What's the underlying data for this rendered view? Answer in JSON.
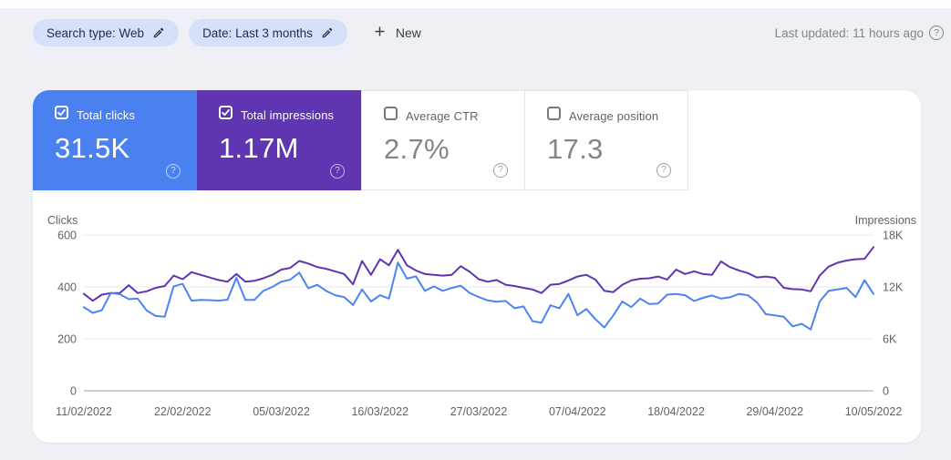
{
  "topbar": {
    "chips": [
      {
        "label": "Search type: Web"
      },
      {
        "label": "Date: Last 3 months"
      }
    ],
    "new_button": "New",
    "last_updated": "Last updated: 11 hours ago"
  },
  "icons": {
    "help": "?"
  },
  "metrics": [
    {
      "label": "Total clicks",
      "value": "31.5K",
      "checked": true,
      "color": "#4a80f0"
    },
    {
      "label": "Total impressions",
      "value": "1.17M",
      "checked": true,
      "color": "#5f35b1"
    },
    {
      "label": "Average CTR",
      "value": "2.7%",
      "checked": false,
      "color": "#ffffff"
    },
    {
      "label": "Average position",
      "value": "17.3",
      "checked": false,
      "color": "#ffffff"
    }
  ],
  "chart_data": {
    "type": "line",
    "grid": true,
    "left_axis": {
      "title": "Clicks",
      "max": 600,
      "ticks": [
        {
          "value": 600,
          "label": "600"
        },
        {
          "value": 400,
          "label": "400"
        },
        {
          "value": 200,
          "label": "200"
        },
        {
          "value": 0,
          "label": "0"
        }
      ]
    },
    "right_axis": {
      "title": "Impressions",
      "max": 18000,
      "ticks": [
        {
          "value": 18000,
          "label": "18K"
        },
        {
          "value": 12000,
          "label": "12K"
        },
        {
          "value": 6000,
          "label": "6K"
        },
        {
          "value": 0,
          "label": "0"
        }
      ]
    },
    "x_ticks": [
      {
        "index": 0,
        "label": "11/02/2022"
      },
      {
        "index": 11,
        "label": "22/02/2022"
      },
      {
        "index": 22,
        "label": "05/03/2022"
      },
      {
        "index": 33,
        "label": "16/03/2022"
      },
      {
        "index": 44,
        "label": "27/03/2022"
      },
      {
        "index": 55,
        "label": "07/04/2022"
      },
      {
        "index": 66,
        "label": "18/04/2022"
      },
      {
        "index": 77,
        "label": "29/04/2022"
      },
      {
        "index": 88,
        "label": "10/05/2022"
      }
    ],
    "series": [
      {
        "name": "Total impressions",
        "axis": "right",
        "color": "#5e35b1",
        "values": [
          11200,
          10400,
          11100,
          11300,
          11300,
          12200,
          11300,
          11500,
          11900,
          12100,
          13300,
          12900,
          13700,
          13400,
          13100,
          12800,
          12600,
          13500,
          12600,
          12700,
          13000,
          13400,
          14000,
          14200,
          15000,
          14700,
          14300,
          14100,
          13800,
          13500,
          12300,
          15000,
          13400,
          15200,
          14500,
          16300,
          14500,
          13900,
          13500,
          13400,
          13300,
          13400,
          14400,
          13750,
          12900,
          12600,
          12800,
          12250,
          12100,
          11900,
          11700,
          11300,
          12250,
          12350,
          12750,
          13200,
          13400,
          12850,
          11550,
          11400,
          12250,
          12750,
          12950,
          13000,
          13200,
          12850,
          14000,
          13500,
          13800,
          13500,
          13400,
          14950,
          14300,
          13900,
          13600,
          13100,
          13200,
          13050,
          11900,
          11750,
          11700,
          11500,
          13300,
          14350,
          14800,
          15050,
          15200,
          15250,
          16600
        ]
      },
      {
        "name": "Total clicks",
        "axis": "left",
        "color": "#4d84f0",
        "values": [
          322,
          300,
          310,
          377,
          372,
          353,
          355,
          309,
          288,
          285,
          402,
          412,
          347,
          350,
          349,
          347,
          351,
          435,
          350,
          350,
          385,
          400,
          420,
          428,
          455,
          395,
          408,
          385,
          368,
          361,
          330,
          390,
          344,
          368,
          355,
          494,
          432,
          441,
          385,
          402,
          385,
          396,
          405,
          377,
          361,
          348,
          343,
          346,
          318,
          325,
          268,
          262,
          329,
          318,
          373,
          291,
          315,
          276,
          244,
          290,
          344,
          322,
          355,
          334,
          336,
          370,
          373,
          368,
          346,
          358,
          367,
          355,
          360,
          373,
          368,
          341,
          295,
          290,
          285,
          248,
          258,
          236,
          344,
          385,
          390,
          396,
          361,
          426,
          373
        ]
      }
    ]
  }
}
